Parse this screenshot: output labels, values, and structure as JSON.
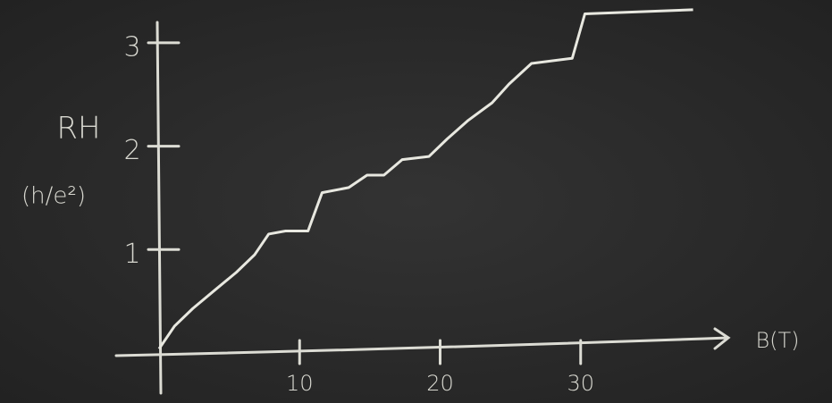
{
  "chart_data": {
    "type": "line",
    "x_label": "B(T)",
    "y_label": "RH",
    "y_unit": "(h/e²)",
    "x": [
      0,
      1.1,
      2.4,
      3.9,
      5.5,
      6.8,
      7.8,
      9.0,
      10.6,
      11.6,
      13.5,
      14.8,
      16,
      17.3,
      19.2,
      20.5,
      22,
      23.7,
      24.9,
      26.5,
      29.4,
      30.3,
      38
    ],
    "series": [
      {
        "name": "RH",
        "color": "#e8e8e0",
        "values": [
          0.04,
          0.26,
          0.43,
          0.6,
          0.78,
          0.95,
          1.15,
          1.18,
          1.18,
          1.55,
          1.6,
          1.72,
          1.72,
          1.87,
          1.9,
          2.07,
          2.25,
          2.42,
          2.6,
          2.8,
          2.85,
          3.28,
          3.32
        ]
      }
    ],
    "xlim": [
      0,
      40
    ],
    "ylim": [
      0,
      3.4
    ],
    "xticks": [
      10,
      20,
      30
    ],
    "yticks": [
      1,
      2,
      3
    ]
  }
}
